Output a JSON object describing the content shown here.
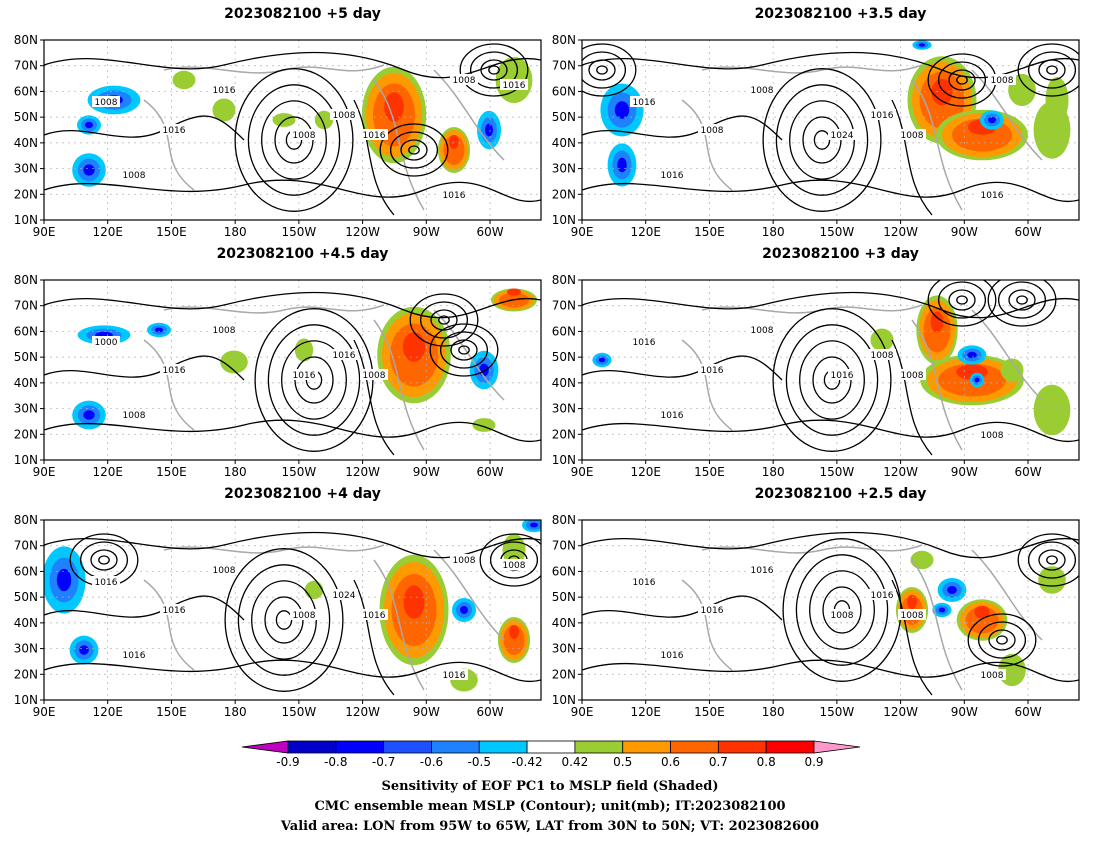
{
  "panels": [
    {
      "title": "2023082100 +5 day",
      "contour_labels": [
        "1008",
        "1016",
        "1008",
        "1016",
        "1008",
        "1008",
        "1016",
        "1016",
        "1008",
        "1016"
      ]
    },
    {
      "title": "2023082100 +3.5 day",
      "contour_labels": [
        "1016",
        "1008",
        "1016",
        "1008",
        "1024",
        "1016",
        "1008",
        "1016",
        "1008"
      ]
    },
    {
      "title": "2023082100 +4.5 day",
      "contour_labels": [
        "1000",
        "1016",
        "1008",
        "1008",
        "1016",
        "1016",
        "1008"
      ]
    },
    {
      "title": "2023082100 +3 day",
      "contour_labels": [
        "1016",
        "1016",
        "1016",
        "1008",
        "1016",
        "1008",
        "1008",
        "1008"
      ]
    },
    {
      "title": "2023082100 +4 day",
      "contour_labels": [
        "1016",
        "1016",
        "1016",
        "1008",
        "1008",
        "1024",
        "1016",
        "1016",
        "1008",
        "1008"
      ]
    },
    {
      "title": "2023082100 +2.5 day",
      "contour_labels": [
        "1016",
        "1016",
        "1016",
        "1016",
        "1008",
        "1016",
        "1008",
        "1008"
      ]
    }
  ],
  "axes": {
    "lon_ticks": [
      "90E",
      "120E",
      "150E",
      "180",
      "150W",
      "120W",
      "90W",
      "60W"
    ],
    "lat_ticks": [
      "10N",
      "20N",
      "30N",
      "40N",
      "50N",
      "60N",
      "70N",
      "80N"
    ]
  },
  "colorbar": {
    "levels": [
      "-0.9",
      "-0.8",
      "-0.7",
      "-0.6",
      "-0.5",
      "-0.42",
      "0.42",
      "0.5",
      "0.6",
      "0.7",
      "0.8",
      "0.9"
    ],
    "colors": [
      "#c000c0",
      "#0000c8",
      "#0000ff",
      "#1e50ff",
      "#1e82ff",
      "#00c8ff",
      "#ffffff",
      "#9acd32",
      "#ff9900",
      "#ff6600",
      "#ff3300",
      "#ff0000",
      "#ff99cc"
    ]
  },
  "footer": {
    "line1": "Sensitivity of EOF PC1 to MSLP field (Shaded)",
    "line2": "CMC ensemble mean MSLP (Contour); unit(mb); IT:2023082100",
    "line3": "Valid area: LON from 95W to 65W, LAT from 30N to 50N; VT: 2023082600"
  }
}
